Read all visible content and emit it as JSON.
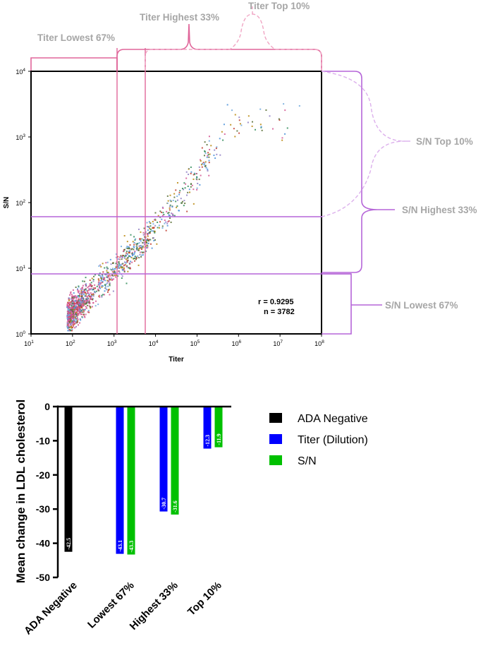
{
  "chart_data": [
    {
      "type": "scatter",
      "xlabel": "Titer",
      "ylabel": "S/N",
      "xscale": "log",
      "yscale": "log",
      "xlim_exponents": [
        1,
        8
      ],
      "ylim_exponents": [
        0,
        4
      ],
      "x_ticks": [
        {
          "base": "10",
          "exp": "1"
        },
        {
          "base": "10",
          "exp": "2"
        },
        {
          "base": "10",
          "exp": "3"
        },
        {
          "base": "10",
          "exp": "4"
        },
        {
          "base": "10",
          "exp": "5"
        },
        {
          "base": "10",
          "exp": "6"
        },
        {
          "base": "10",
          "exp": "7"
        },
        {
          "base": "10",
          "exp": "8"
        }
      ],
      "y_ticks": [
        {
          "base": "10",
          "exp": "0"
        },
        {
          "base": "10",
          "exp": "1"
        },
        {
          "base": "10",
          "exp": "2"
        },
        {
          "base": "10",
          "exp": "3"
        },
        {
          "base": "10",
          "exp": "4"
        }
      ],
      "stats": {
        "r": "r = 0.9295",
        "n": "n = 3782"
      },
      "titer_cutoffs": [
        1200,
        5800
      ],
      "sn_cutoffs": [
        8,
        60
      ],
      "point_colors": [
        "#4a90d9",
        "#6fa8dc",
        "#8e7cc3",
        "#556b2f",
        "#c0392b",
        "#d35490",
        "#2e8b57",
        "#b8860b"
      ],
      "x_region_labels": {
        "lowest": "Titer Lowest 67%",
        "highest": "Titer Highest 33%",
        "top": "Titer Top 10%"
      },
      "y_region_labels": {
        "top": "S/N Top 10%",
        "highest": "S/N Highest 33%",
        "lowest": "S/N Lowest 67%"
      }
    },
    {
      "type": "bar",
      "ylabel": "Mean change in LDL cholesterol",
      "ylim": [
        -50,
        0
      ],
      "y_ticks": [
        "0",
        "-10",
        "-20",
        "-30",
        "-40",
        "-50"
      ],
      "categories": [
        "ADA Negative",
        "Lowest 67%",
        "Highest 33%",
        "Top 10%"
      ],
      "series": [
        {
          "name": "ADA Negative",
          "color": "#000000",
          "values": [
            -42.5,
            null,
            null,
            null
          ],
          "labels": [
            "-42.5",
            "",
            "",
            ""
          ]
        },
        {
          "name": "Titer (Dilution)",
          "color": "#0000ff",
          "values": [
            null,
            -43.1,
            -30.7,
            -12.3
          ],
          "labels": [
            "",
            "-43.1",
            "-30.7",
            "-12.3"
          ]
        },
        {
          "name": "S/N",
          "color": "#00c000",
          "values": [
            null,
            -43.3,
            -31.6,
            -11.9
          ],
          "labels": [
            "",
            "-43.3",
            "-31.6",
            "-11.9"
          ]
        }
      ],
      "legend": [
        "ADA Negative",
        "Titer (Dilution)",
        "S/N"
      ]
    }
  ]
}
